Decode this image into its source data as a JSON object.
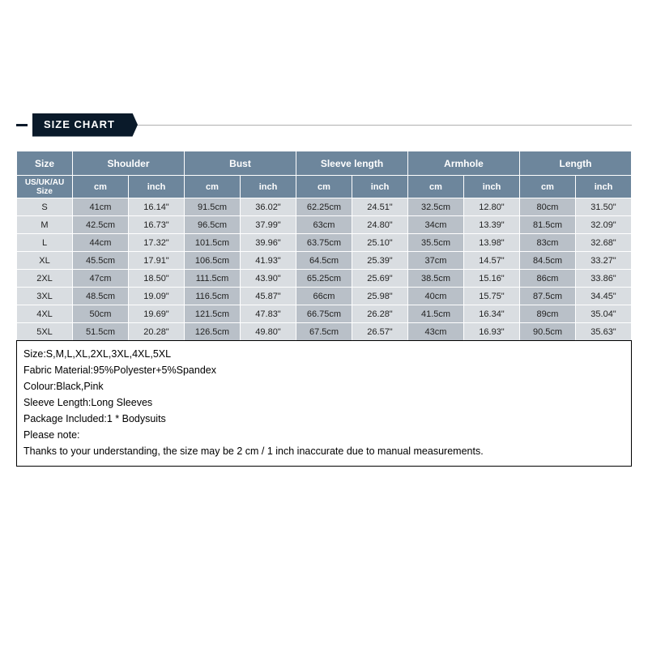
{
  "header": {
    "label": "SIZE CHART"
  },
  "table": {
    "main_headers": [
      "Size",
      "Shoulder",
      "Bust",
      "Sleeve length",
      "Armhole",
      "Length"
    ],
    "sub_headers": {
      "size": "US/UK/AU Size",
      "units": [
        "cm",
        "inch"
      ]
    },
    "rows": [
      {
        "size": "S",
        "shoulder_cm": "41cm",
        "shoulder_in": "16.14\"",
        "bust_cm": "91.5cm",
        "bust_in": "36.02\"",
        "sleeve_cm": "62.25cm",
        "sleeve_in": "24.51\"",
        "arm_cm": "32.5cm",
        "arm_in": "12.80\"",
        "len_cm": "80cm",
        "len_in": "31.50\""
      },
      {
        "size": "M",
        "shoulder_cm": "42.5cm",
        "shoulder_in": "16.73\"",
        "bust_cm": "96.5cm",
        "bust_in": "37.99\"",
        "sleeve_cm": "63cm",
        "sleeve_in": "24.80\"",
        "arm_cm": "34cm",
        "arm_in": "13.39\"",
        "len_cm": "81.5cm",
        "len_in": "32.09\""
      },
      {
        "size": "L",
        "shoulder_cm": "44cm",
        "shoulder_in": "17.32\"",
        "bust_cm": "101.5cm",
        "bust_in": "39.96\"",
        "sleeve_cm": "63.75cm",
        "sleeve_in": "25.10\"",
        "arm_cm": "35.5cm",
        "arm_in": "13.98\"",
        "len_cm": "83cm",
        "len_in": "32.68\""
      },
      {
        "size": "XL",
        "shoulder_cm": "45.5cm",
        "shoulder_in": "17.91\"",
        "bust_cm": "106.5cm",
        "bust_in": "41.93\"",
        "sleeve_cm": "64.5cm",
        "sleeve_in": "25.39\"",
        "arm_cm": "37cm",
        "arm_in": "14.57\"",
        "len_cm": "84.5cm",
        "len_in": "33.27\""
      },
      {
        "size": "2XL",
        "shoulder_cm": "47cm",
        "shoulder_in": "18.50\"",
        "bust_cm": "111.5cm",
        "bust_in": "43.90\"",
        "sleeve_cm": "65.25cm",
        "sleeve_in": "25.69\"",
        "arm_cm": "38.5cm",
        "arm_in": "15.16\"",
        "len_cm": "86cm",
        "len_in": "33.86\""
      },
      {
        "size": "3XL",
        "shoulder_cm": "48.5cm",
        "shoulder_in": "19.09\"",
        "bust_cm": "116.5cm",
        "bust_in": "45.87\"",
        "sleeve_cm": "66cm",
        "sleeve_in": "25.98\"",
        "arm_cm": "40cm",
        "arm_in": "15.75\"",
        "len_cm": "87.5cm",
        "len_in": "34.45\""
      },
      {
        "size": "4XL",
        "shoulder_cm": "50cm",
        "shoulder_in": "19.69\"",
        "bust_cm": "121.5cm",
        "bust_in": "47.83\"",
        "sleeve_cm": "66.75cm",
        "sleeve_in": "26.28\"",
        "arm_cm": "41.5cm",
        "arm_in": "16.34\"",
        "len_cm": "89cm",
        "len_in": "35.04\""
      },
      {
        "size": "5XL",
        "shoulder_cm": "51.5cm",
        "shoulder_in": "20.28\"",
        "bust_cm": "126.5cm",
        "bust_in": "49.80\"",
        "sleeve_cm": "67.5cm",
        "sleeve_in": "26.57\"",
        "arm_cm": "43cm",
        "arm_in": "16.93\"",
        "len_cm": "90.5cm",
        "len_in": "35.63\""
      }
    ]
  },
  "notes": [
    "Size:S,M,L,XL,2XL,3XL,4XL,5XL",
    "Fabric Material:95%Polyester+5%Spandex",
    "Colour:Black,Pink",
    "Sleeve Length:Long Sleeves",
    "Package Included:1 * Bodysuits",
    "Please note:",
    "Thanks to your understanding, the size may be 2 cm / 1 inch inaccurate due to manual measurements."
  ],
  "styling": {
    "header_bg": "#6d869c",
    "header_fg": "#ffffff",
    "size_col_bg": "#d9dde1",
    "cm_col_bg": "#b9c0c8",
    "in_col_bg": "#d9dde1",
    "border_color": "#ffffff",
    "font_size_body": 11,
    "font_size_header": 12,
    "tab_bg": "#0a1a2a"
  }
}
